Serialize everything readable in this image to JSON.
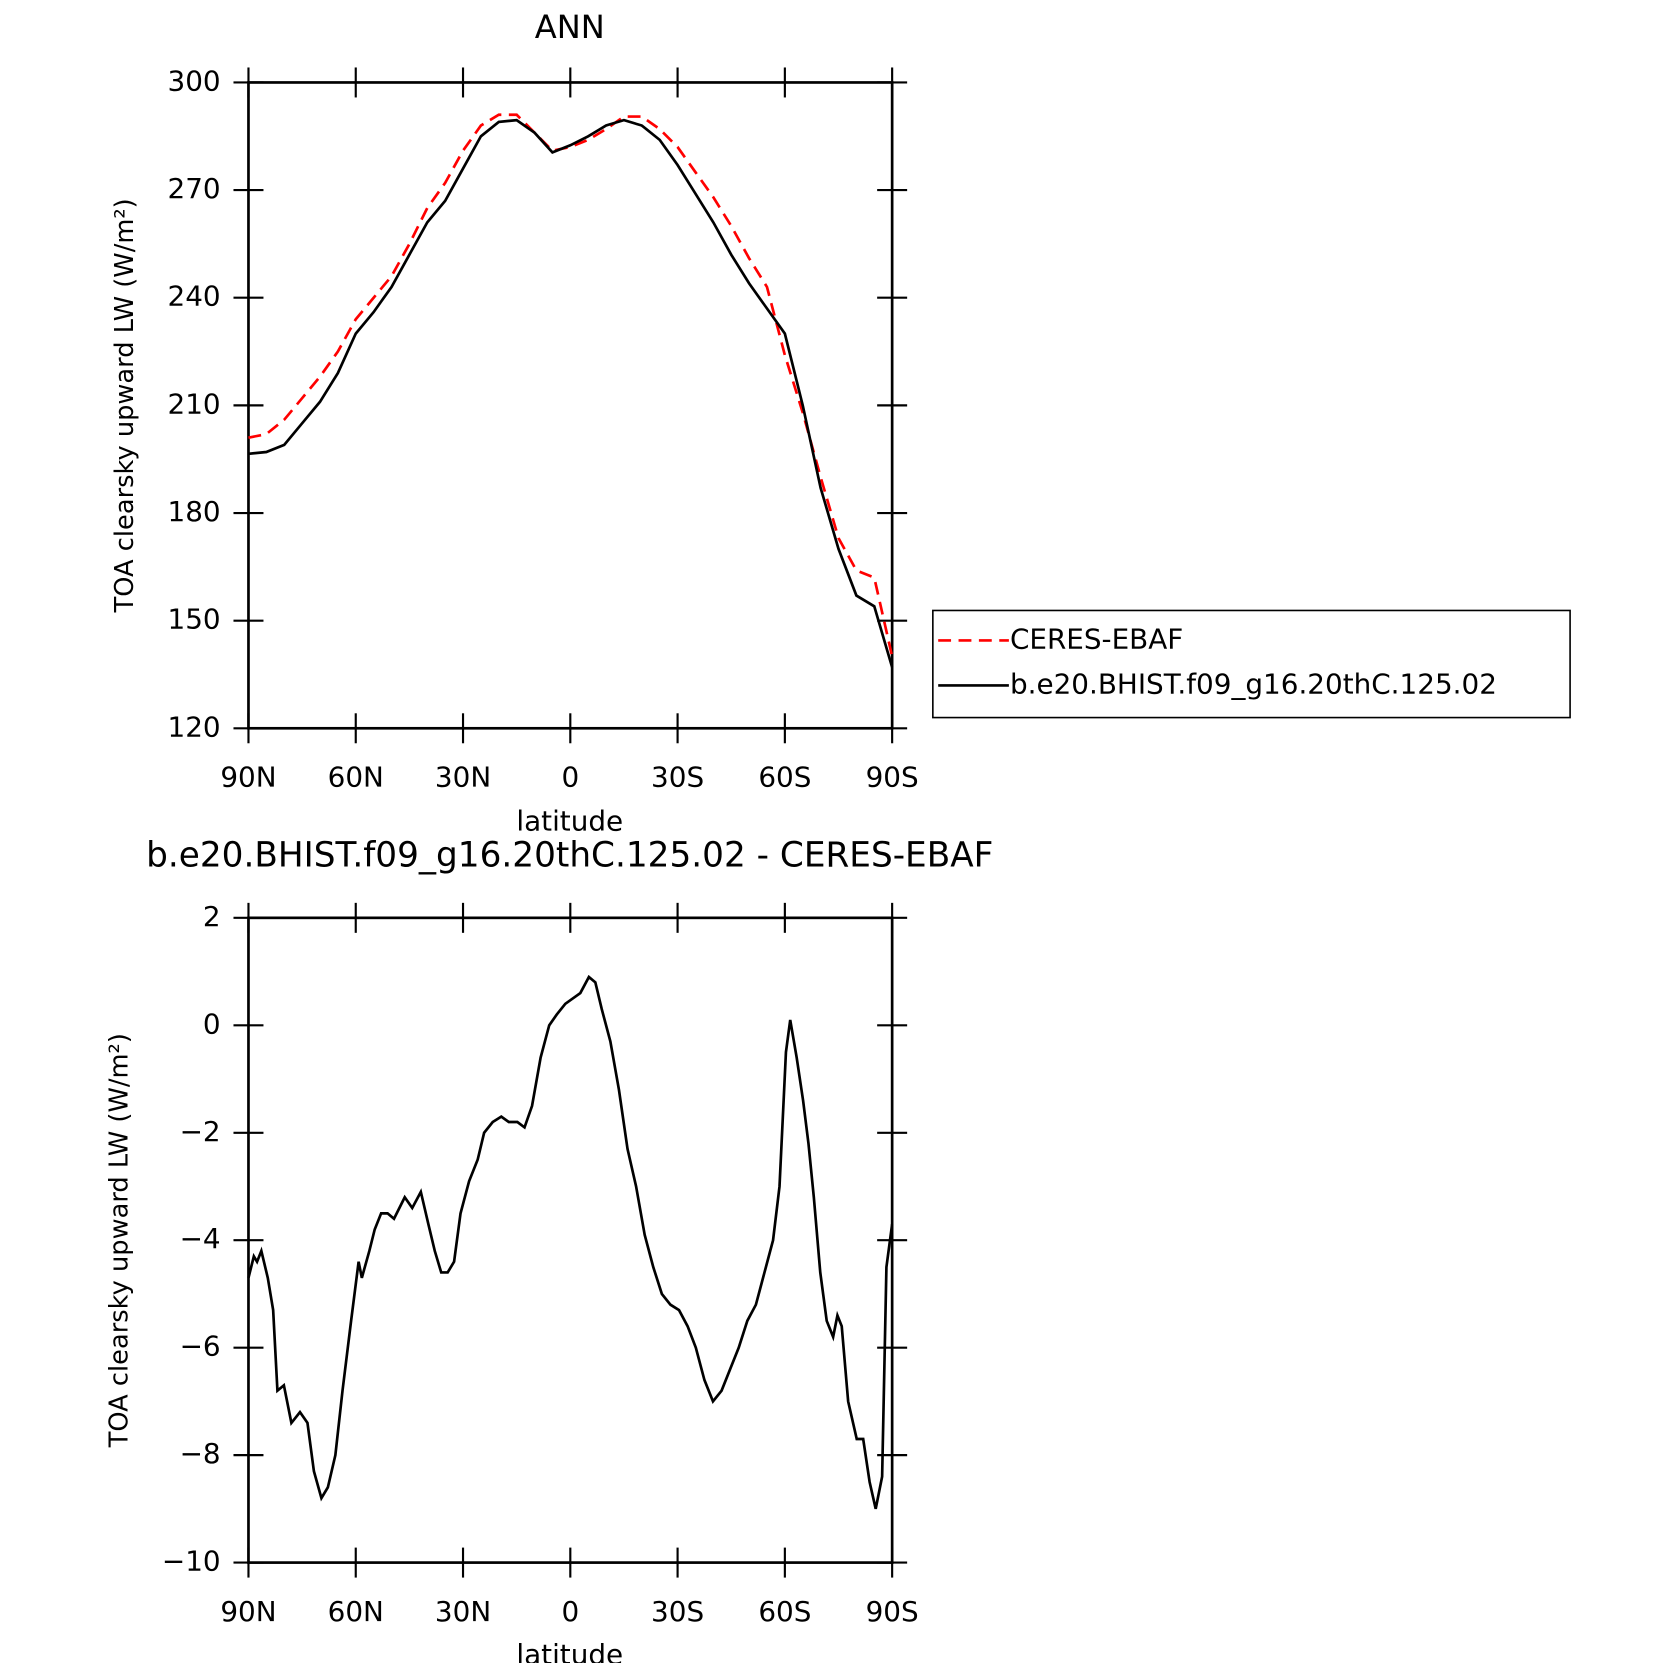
{
  "chart_data": [
    {
      "type": "line",
      "title": "ANN",
      "xlabel": "latitude",
      "ylabel": "TOA clearsky upward LW (W/m²)",
      "x": [
        90,
        85,
        80,
        75,
        70,
        65,
        60,
        55,
        50,
        45,
        40,
        35,
        30,
        25,
        20,
        15,
        10,
        5,
        0,
        -5,
        -10,
        -15,
        -20,
        -25,
        -30,
        -35,
        -40,
        -45,
        -50,
        -55,
        -60,
        -65,
        -70,
        -75,
        -80,
        -85,
        -90
      ],
      "series": [
        {
          "name": "CERES-EBAF",
          "color": "#ff0000",
          "linestyle": "dashed",
          "values": [
            201,
            202,
            206,
            212,
            218,
            225,
            234,
            240,
            246,
            255,
            265,
            272,
            281,
            288,
            291,
            291,
            286,
            281,
            282,
            284,
            287,
            290.5,
            290.5,
            287,
            282,
            275,
            268,
            260,
            251,
            243,
            224,
            208,
            190,
            173,
            164,
            162,
            140
          ]
        },
        {
          "name": "b.e20.BHIST.f09_g16.20thC.125.02",
          "color": "#000000",
          "linestyle": "solid",
          "values": [
            196.5,
            197,
            199,
            205,
            211,
            219,
            230,
            236,
            243,
            252,
            261,
            267,
            276,
            285,
            289,
            289.5,
            286,
            280.5,
            282.5,
            285,
            288,
            289.5,
            288,
            284,
            277,
            269,
            261,
            252,
            244,
            237,
            230,
            210,
            187,
            170,
            157,
            154,
            137
          ]
        }
      ],
      "xlim": [
        90,
        -90
      ],
      "xticks": [
        {
          "value": 90,
          "label": "90N"
        },
        {
          "value": 60,
          "label": "60N"
        },
        {
          "value": 30,
          "label": "30N"
        },
        0,
        {
          "value": -30,
          "label": "30S"
        },
        {
          "value": -60,
          "label": "60S"
        },
        {
          "value": -90,
          "label": "90S"
        }
      ],
      "ylim": [
        120,
        300
      ],
      "yticks": [
        120,
        150,
        180,
        210,
        240,
        270,
        300
      ],
      "legend": "right"
    },
    {
      "type": "line",
      "title": "b.e20.BHIST.f09_g16.20thC.125.02 - CERES-EBAF",
      "xlabel": "latitude",
      "ylabel": "TOA clearsky upward LW (W/m²)",
      "x": [
        90,
        88.5,
        87.6,
        86.4,
        84.6,
        83.1,
        81.9,
        80.1,
        78,
        75.6,
        73.5,
        71.7,
        69.6,
        67.8,
        65.7,
        63.7,
        61.3,
        59.2,
        58.3,
        56.2,
        54.7,
        52.9,
        51.1,
        49.3,
        47.8,
        46.3,
        44.2,
        41.8,
        39.7,
        37.9,
        36.1,
        34.3,
        32.5,
        30.7,
        28.3,
        25.9,
        24.1,
        21.7,
        19.3,
        17.2,
        14.8,
        12.8,
        10.7,
        8.3,
        5.9,
        3.8,
        1.4,
        -0.7,
        -2.8,
        -5.2,
        -7,
        -8.8,
        -11.2,
        -13.6,
        -16,
        -18.4,
        -20.8,
        -23.2,
        -25.6,
        -28,
        -30.4,
        -32.8,
        -35.1,
        -37.5,
        -39.9,
        -42.3,
        -44.7,
        -47.1,
        -49.5,
        -51.9,
        -54.3,
        -56.7,
        -58.5,
        -60.3,
        -61.5,
        -63.3,
        -65.1,
        -66.6,
        -68.1,
        -69.9,
        -71.7,
        -73.5,
        -74.7,
        -75.9,
        -77.7,
        -80.1,
        -81.9,
        -83.7,
        -85.4,
        -87.2,
        -88.4,
        -90
      ],
      "series": [
        {
          "color": "#000000",
          "linestyle": "solid",
          "values": [
            -4.7,
            -4.3,
            -4.4,
            -4.2,
            -4.7,
            -5.3,
            -6.8,
            -6.7,
            -7.4,
            -7.2,
            -7.4,
            -8.3,
            -8.8,
            -8.6,
            -8,
            -6.8,
            -5.5,
            -4.4,
            -4.7,
            -4.2,
            -3.8,
            -3.5,
            -3.5,
            -3.6,
            -3.4,
            -3.2,
            -3.4,
            -3.1,
            -3.7,
            -4.2,
            -4.6,
            -4.6,
            -4.4,
            -3.5,
            -2.9,
            -2.5,
            -2,
            -1.8,
            -1.7,
            -1.8,
            -1.8,
            -1.9,
            -1.5,
            -0.6,
            0,
            0.2,
            0.4,
            0.5,
            0.6,
            0.9,
            0.8,
            0.3,
            -0.3,
            -1.2,
            -2.3,
            -3,
            -3.9,
            -4.5,
            -5,
            -5.2,
            -5.3,
            -5.6,
            -6,
            -6.6,
            -7,
            -6.8,
            -6.4,
            -6,
            -5.5,
            -5.2,
            -4.6,
            -4,
            -3,
            -0.5,
            0.1,
            -0.6,
            -1.4,
            -2.2,
            -3.2,
            -4.6,
            -5.5,
            -5.8,
            -5.4,
            -5.6,
            -7,
            -7.7,
            -7.7,
            -8.5,
            -9,
            -8.4,
            -4.5,
            -3.7
          ]
        }
      ],
      "xlim": [
        90,
        -90
      ],
      "xticks": [
        {
          "value": 90,
          "label": "90N"
        },
        {
          "value": 60,
          "label": "60N"
        },
        {
          "value": 30,
          "label": "30N"
        },
        0,
        {
          "value": -30,
          "label": "30S"
        },
        {
          "value": -60,
          "label": "60S"
        },
        {
          "value": -90,
          "label": "90S"
        }
      ],
      "ylim": [
        -10,
        2
      ],
      "yticks": [
        {
          "value": -10,
          "label": "−10"
        },
        {
          "value": -8,
          "label": "−8"
        },
        {
          "value": -6,
          "label": "−6"
        },
        {
          "value": -4,
          "label": "−4"
        },
        {
          "value": -2,
          "label": "−2"
        },
        0,
        2
      ]
    }
  ]
}
